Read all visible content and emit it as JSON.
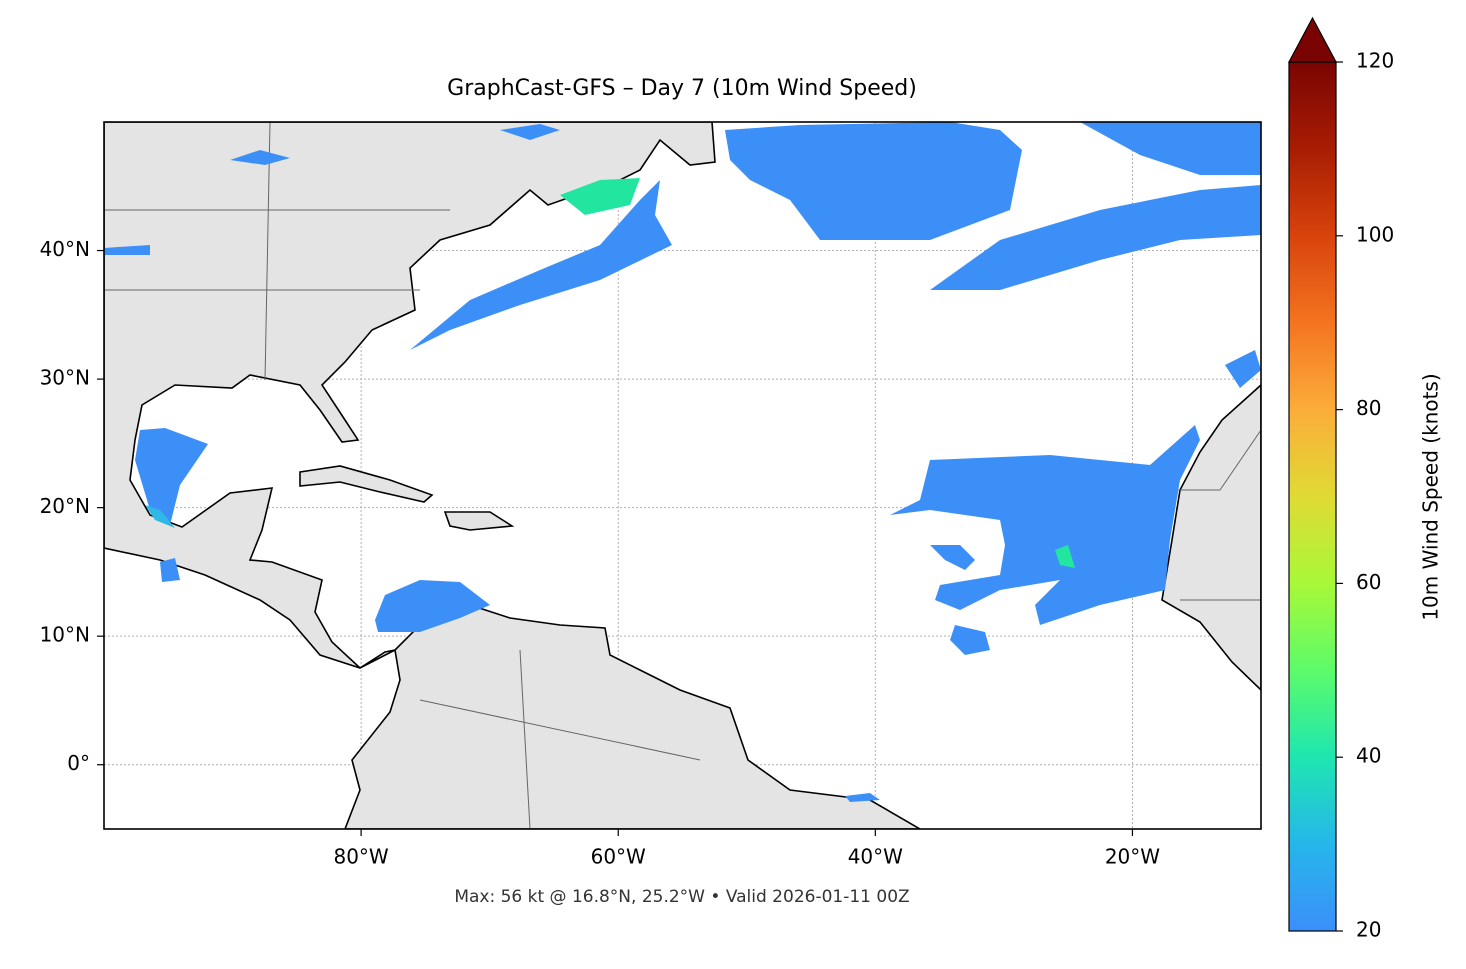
{
  "chart_data": {
    "type": "map",
    "title": "GraphCast-GFS – Day 7 (10m Wind Speed)",
    "xlim": [
      -100,
      -10
    ],
    "ylim": [
      -5,
      50
    ],
    "xticks": [
      {
        "value": -80,
        "label": "80°W"
      },
      {
        "value": -60,
        "label": "60°W"
      },
      {
        "value": -40,
        "label": "40°W"
      },
      {
        "value": -20,
        "label": "20°W"
      }
    ],
    "yticks": [
      {
        "value": 0,
        "label": "0°"
      },
      {
        "value": 10,
        "label": "10°N"
      },
      {
        "value": 20,
        "label": "20°N"
      },
      {
        "value": 30,
        "label": "30°N"
      },
      {
        "value": 40,
        "label": "40°N"
      }
    ],
    "grid": true,
    "colorbar": {
      "label": "10m Wind Speed (knots)",
      "lim": [
        20,
        120
      ],
      "ticks": [
        20,
        40,
        60,
        80,
        100,
        120
      ]
    },
    "footnote": "Max: 56 kt @ 16.8°N, 25.2°W • Valid 2026-01-11 00Z"
  }
}
